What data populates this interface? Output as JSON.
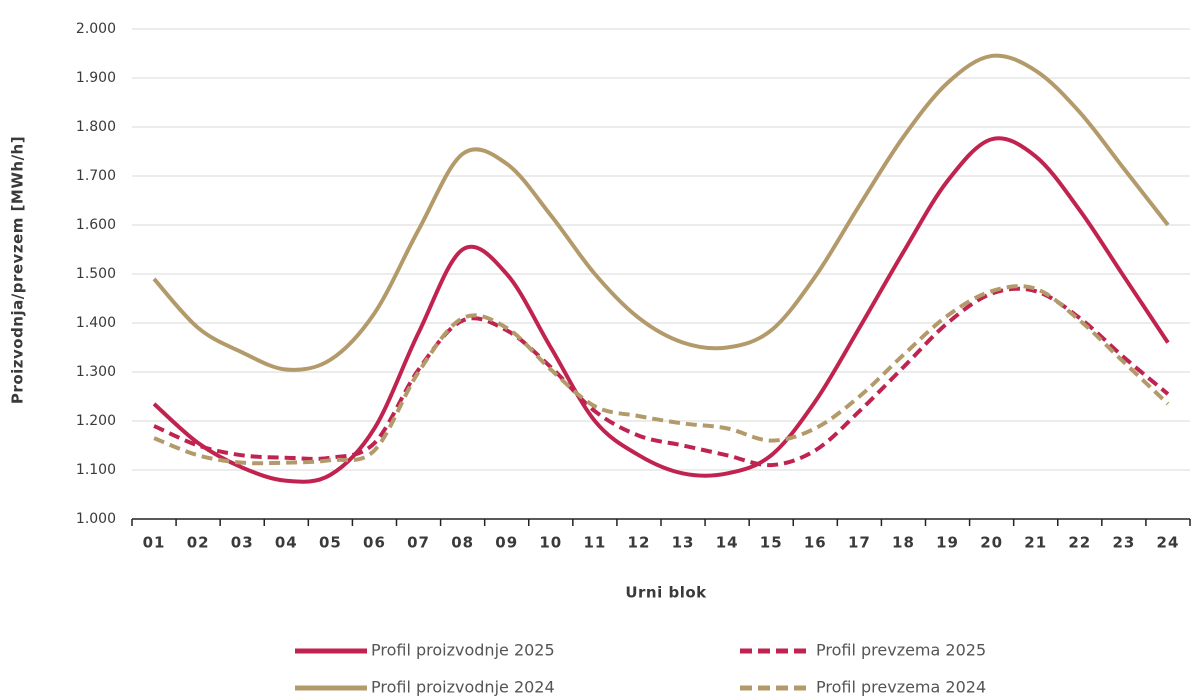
{
  "chart_data": {
    "type": "line",
    "y_label": "Proizvodnja/prevzem [MWh/h]",
    "x_label": "Urni blok",
    "categories": [
      "01",
      "02",
      "03",
      "04",
      "05",
      "06",
      "07",
      "08",
      "09",
      "10",
      "11",
      "12",
      "13",
      "14",
      "15",
      "16",
      "17",
      "18",
      "19",
      "20",
      "21",
      "22",
      "23",
      "24"
    ],
    "series": [
      {
        "name": "Profil proizvodnje 2025",
        "color": "#c0234f",
        "dash": false,
        "values": [
          1235,
          1155,
          1105,
          1078,
          1090,
          1185,
          1380,
          1550,
          1500,
          1350,
          1200,
          1130,
          1093,
          1093,
          1130,
          1240,
          1390,
          1545,
          1690,
          1775,
          1740,
          1630,
          1495,
          1360
        ]
      },
      {
        "name": "Profil prevzema 2025",
        "color": "#c0234f",
        "dash": true,
        "values": [
          1190,
          1150,
          1130,
          1125,
          1125,
          1155,
          1305,
          1405,
          1385,
          1310,
          1220,
          1170,
          1150,
          1130,
          1110,
          1140,
          1220,
          1310,
          1400,
          1460,
          1465,
          1410,
          1330,
          1255
        ]
      },
      {
        "name": "Profil proizvodnje 2024",
        "color": "#b39a6a",
        "dash": false,
        "values": [
          1490,
          1390,
          1340,
          1305,
          1325,
          1420,
          1590,
          1745,
          1725,
          1620,
          1500,
          1410,
          1360,
          1350,
          1385,
          1495,
          1640,
          1780,
          1890,
          1945,
          1915,
          1830,
          1715,
          1600
        ]
      },
      {
        "name": "Profil prevzema 2024",
        "color": "#b39a6a",
        "dash": true,
        "values": [
          1165,
          1130,
          1115,
          1115,
          1120,
          1140,
          1300,
          1410,
          1390,
          1305,
          1230,
          1210,
          1195,
          1185,
          1160,
          1185,
          1250,
          1335,
          1415,
          1465,
          1470,
          1405,
          1320,
          1235
        ]
      }
    ],
    "ylim": [
      1000,
      2000
    ],
    "yticks": [
      {
        "value": 1000,
        "label": "1.000"
      },
      {
        "value": 1100,
        "label": "1.100"
      },
      {
        "value": 1200,
        "label": "1.200"
      },
      {
        "value": 1300,
        "label": "1.300"
      },
      {
        "value": 1400,
        "label": "1.400"
      },
      {
        "value": 1500,
        "label": "1.500"
      },
      {
        "value": 1600,
        "label": "1.600"
      },
      {
        "value": 1700,
        "label": "1.700"
      },
      {
        "value": 1800,
        "label": "1.800"
      },
      {
        "value": 1900,
        "label": "1.900"
      },
      {
        "value": 2000,
        "label": "2.000"
      }
    ],
    "grid": true,
    "legend": "bottom"
  }
}
